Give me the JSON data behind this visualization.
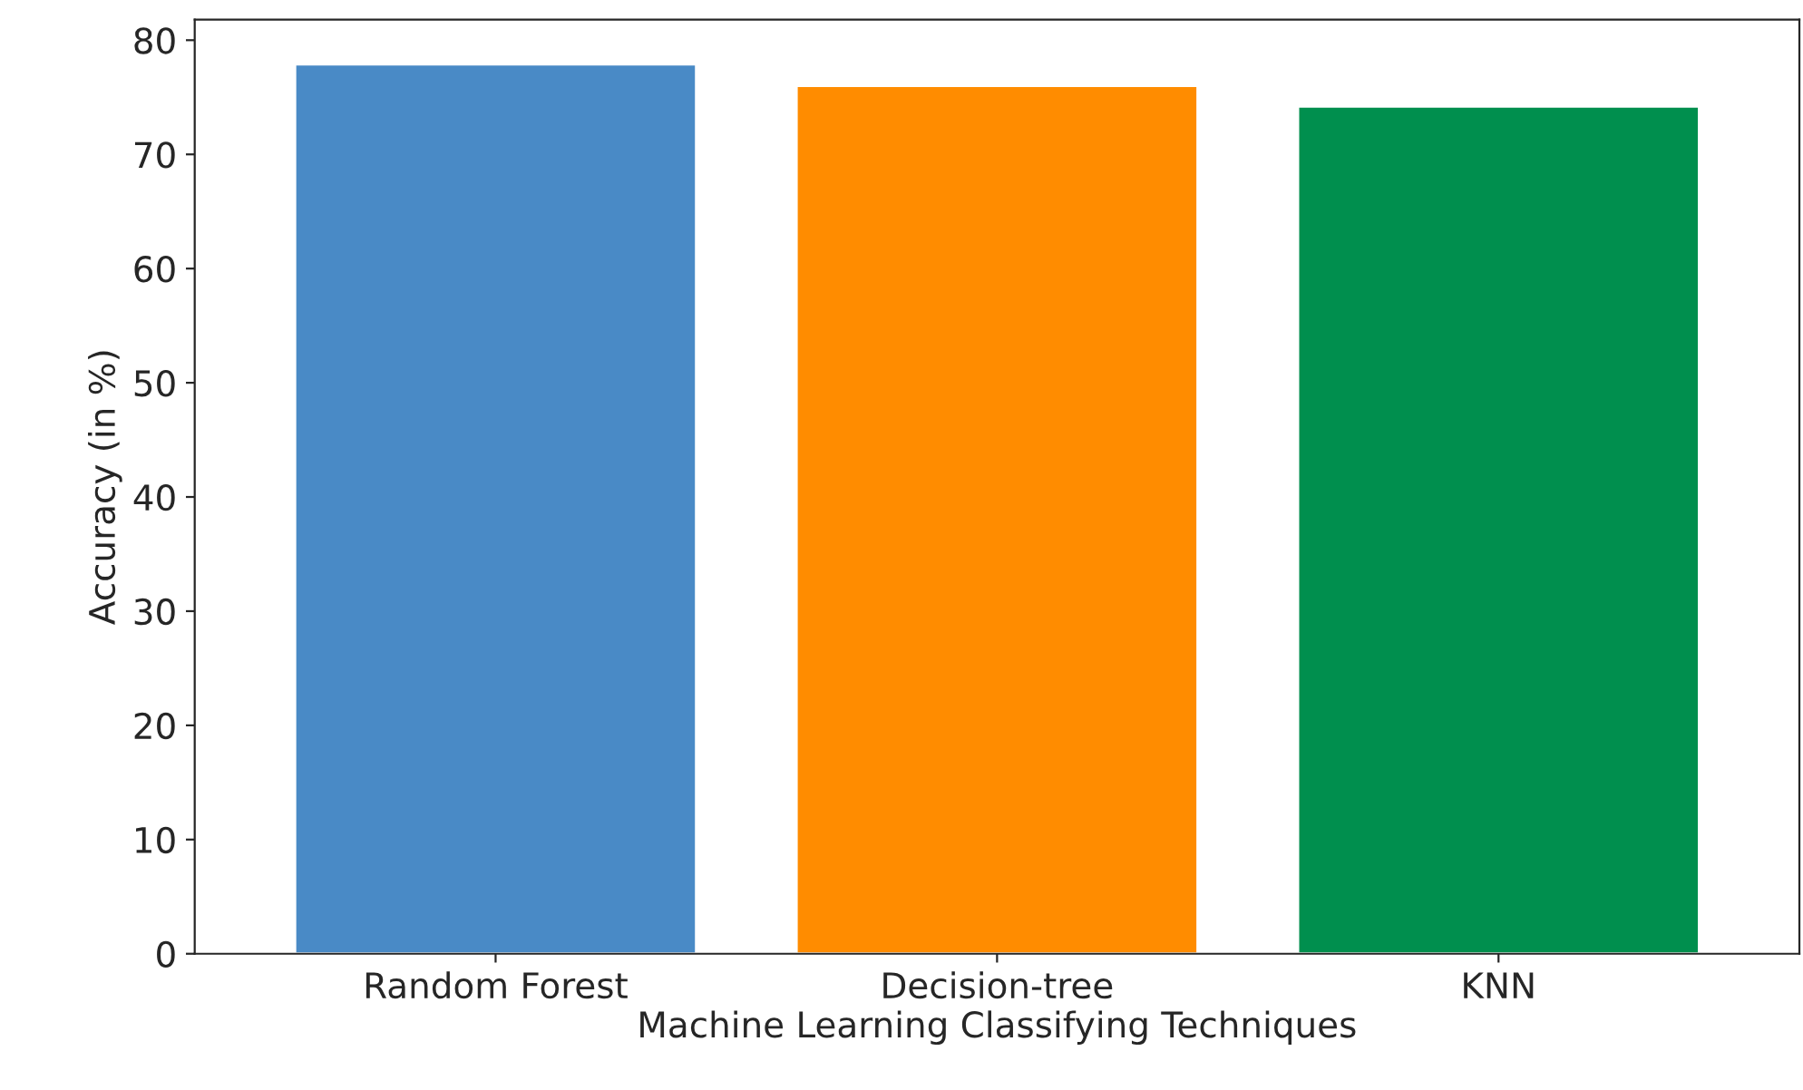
{
  "chart_data": {
    "type": "bar",
    "xlabel": "Machine Learning Classifying Techniques",
    "ylabel": "Accuracy (in %)",
    "categories": [
      "Random Forest",
      "Decision-tree",
      "KNN"
    ],
    "values": [
      77.9,
      76.0,
      74.2
    ],
    "colors": [
      "#498ac6",
      "#ff8c00",
      "#008f4e"
    ],
    "ylim": [
      0,
      81.8
    ],
    "yticks": [
      0,
      10,
      20,
      30,
      40,
      50,
      60,
      70,
      80
    ],
    "grid": false,
    "legend": false
  }
}
